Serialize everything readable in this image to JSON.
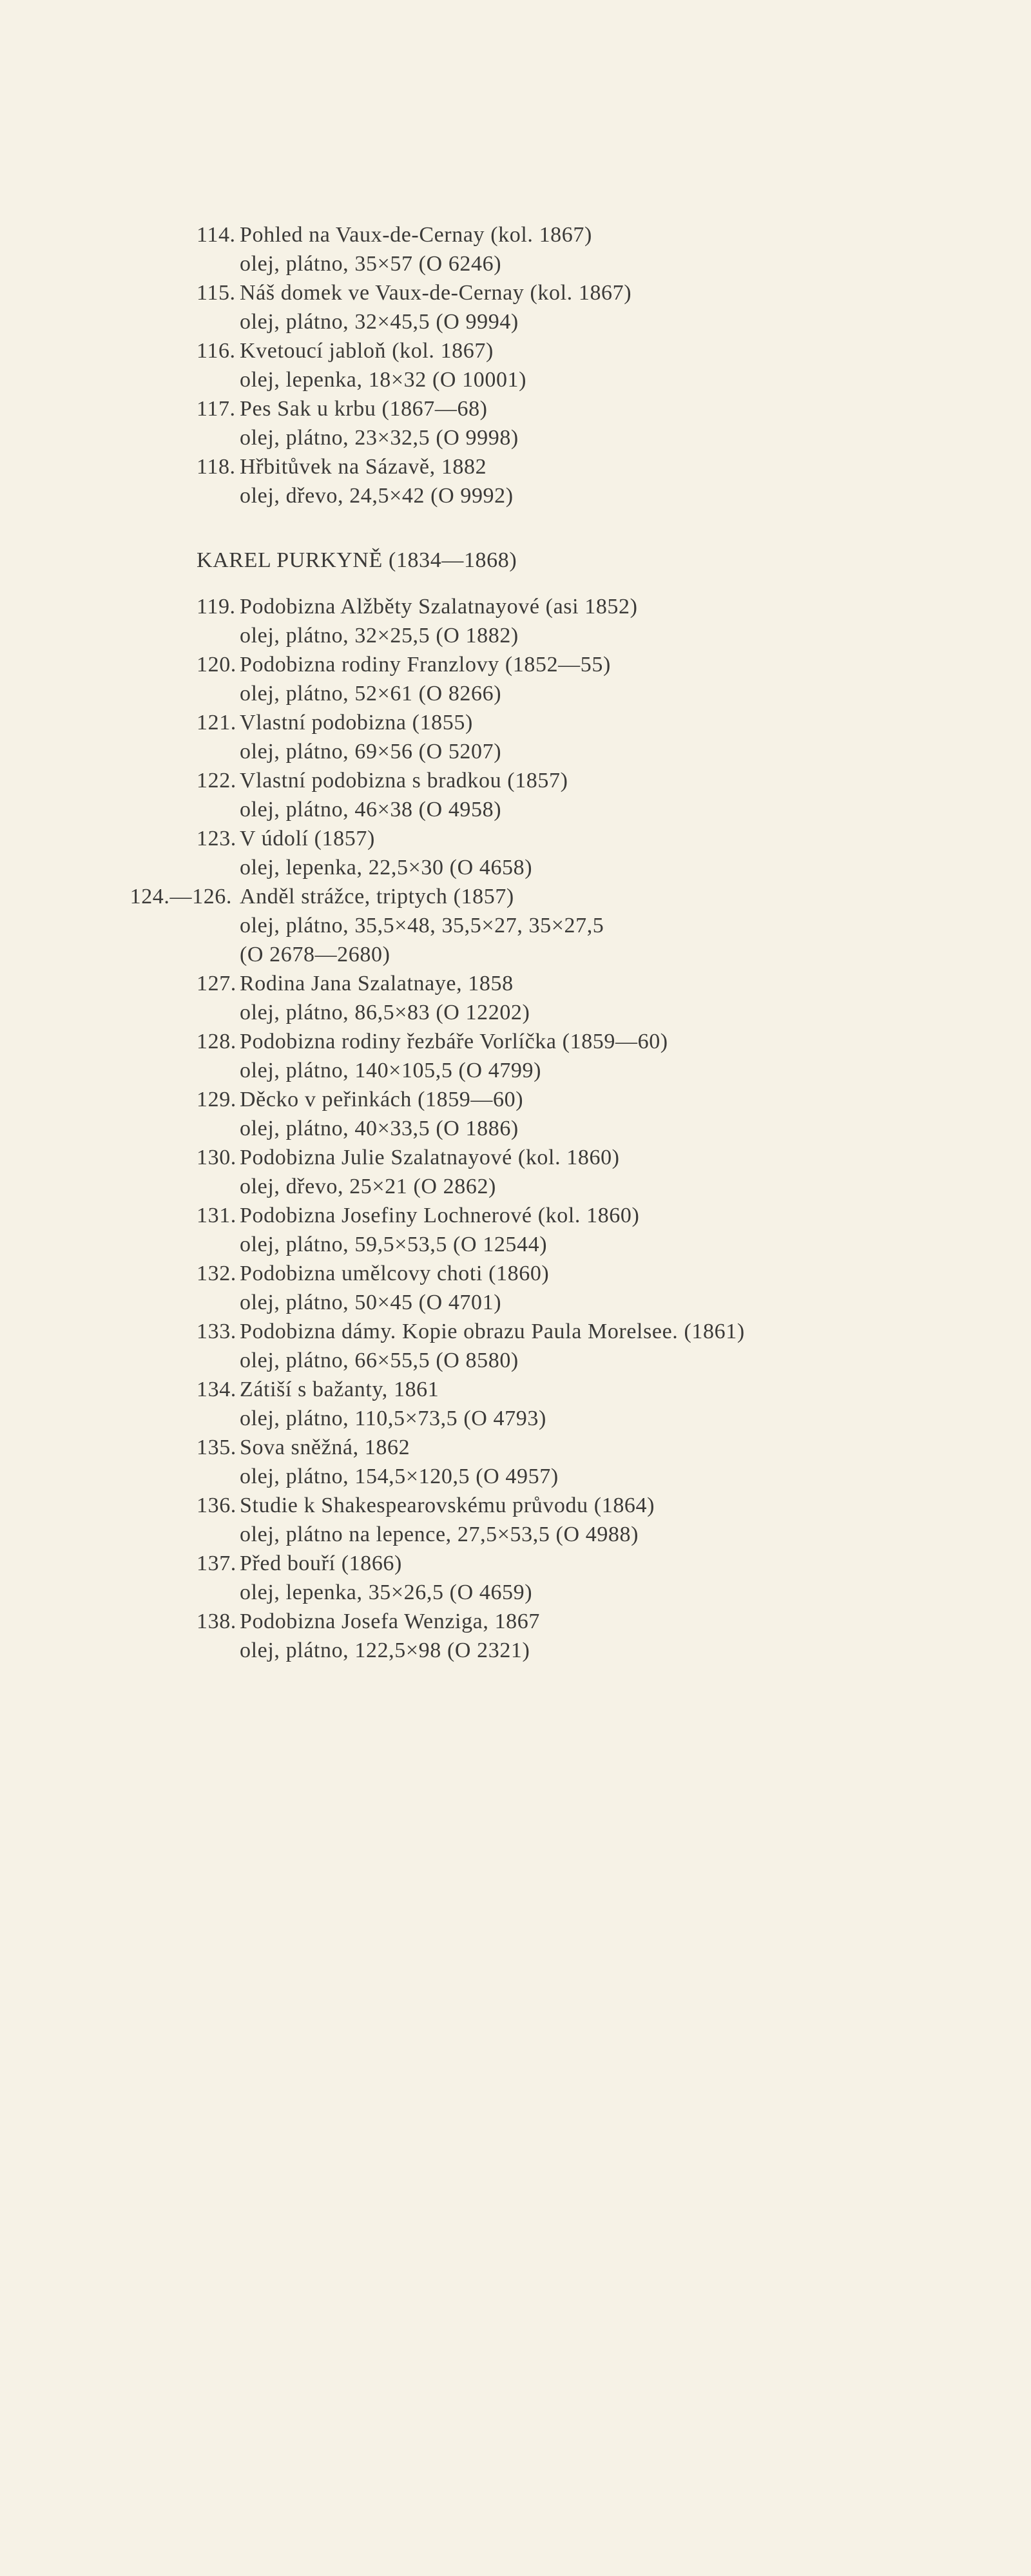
{
  "pre_items": [
    {
      "number": "114.",
      "lines": [
        "Pohled na Vaux-de-Cernay (kol. 1867)",
        "olej, plátno, 35×57 (O 6246)"
      ]
    },
    {
      "number": "115.",
      "lines": [
        "Náš domek ve Vaux-de-Cernay (kol. 1867)",
        "olej, plátno, 32×45,5 (O 9994)"
      ]
    },
    {
      "number": "116.",
      "lines": [
        "Kvetoucí jabloň (kol. 1867)",
        "olej, lepenka, 18×32 (O 10001)"
      ]
    },
    {
      "number": "117.",
      "lines": [
        "Pes Sak u krbu (1867—68)",
        "olej, plátno, 23×32,5 (O 9998)"
      ]
    },
    {
      "number": "118.",
      "lines": [
        "Hřbitůvek na Sázavě, 1882",
        "olej, dřevo, 24,5×42 (O 9992)"
      ]
    }
  ],
  "section": {
    "heading": "KAREL PURKYNĚ (1834—1868)",
    "items": [
      {
        "number": "119.",
        "lines": [
          "Podobizna Alžběty Szalatnayové (asi 1852)",
          "olej, plátno, 32×25,5 (O 1882)"
        ]
      },
      {
        "number": "120.",
        "lines": [
          "Podobizna rodiny Franzlovy (1852—55)",
          "olej, plátno, 52×61 (O 8266)"
        ]
      },
      {
        "number": "121.",
        "lines": [
          "Vlastní podobizna (1855)",
          "olej, plátno, 69×56 (O 5207)"
        ]
      },
      {
        "number": "122.",
        "lines": [
          "Vlastní podobizna s bradkou (1857)",
          "olej, plátno, 46×38 (O 4958)"
        ]
      },
      {
        "number": "123.",
        "lines": [
          "V údolí (1857)",
          "olej, lepenka, 22,5×30 (O 4658)"
        ]
      },
      {
        "number": "124.—126.",
        "lines": [
          "Anděl strážce, triptych (1857)",
          "olej, plátno, 35,5×48, 35,5×27, 35×27,5",
          "(O 2678—2680)"
        ]
      },
      {
        "number": "127.",
        "lines": [
          "Rodina Jana Szalatnaye, 1858",
          "olej, plátno, 86,5×83 (O 12202)"
        ]
      },
      {
        "number": "128.",
        "lines": [
          "Podobizna rodiny řezbáře Vorlíčka (1859—60)",
          "olej, plátno, 140×105,5 (O 4799)"
        ]
      },
      {
        "number": "129.",
        "lines": [
          "Děcko v peřinkách (1859—60)",
          "olej, plátno, 40×33,5 (O 1886)"
        ]
      },
      {
        "number": "130.",
        "lines": [
          "Podobizna Julie Szalatnayové (kol. 1860)",
          "olej, dřevo, 25×21 (O 2862)"
        ]
      },
      {
        "number": "131.",
        "lines": [
          "Podobizna Josefiny Lochnerové (kol. 1860)",
          "olej, plátno, 59,5×53,5 (O 12544)"
        ]
      },
      {
        "number": "132.",
        "lines": [
          "Podobizna umělcovy choti (1860)",
          "olej, plátno, 50×45 (O 4701)"
        ]
      },
      {
        "number": "133.",
        "lines": [
          "Podobizna dámy. Kopie obrazu Paula Morelsee. (1861)",
          "olej, plátno, 66×55,5 (O 8580)"
        ]
      },
      {
        "number": "134.",
        "lines": [
          "Zátiší s bažanty, 1861",
          "olej, plátno, 110,5×73,5 (O 4793)"
        ]
      },
      {
        "number": "135.",
        "lines": [
          "Sova sněžná, 1862",
          "olej, plátno, 154,5×120,5 (O 4957)"
        ]
      },
      {
        "number": "136.",
        "lines": [
          "Studie k Shakespearovskému průvodu (1864)",
          "olej, plátno na lepence, 27,5×53,5 (O 4988)"
        ]
      },
      {
        "number": "137.",
        "lines": [
          "Před bouří (1866)",
          "olej, lepenka, 35×26,5 (O 4659)"
        ]
      },
      {
        "number": "138.",
        "lines": [
          "Podobizna Josefa Wenziga, 1867",
          "olej, plátno, 122,5×98 (O 2321)"
        ]
      }
    ]
  }
}
